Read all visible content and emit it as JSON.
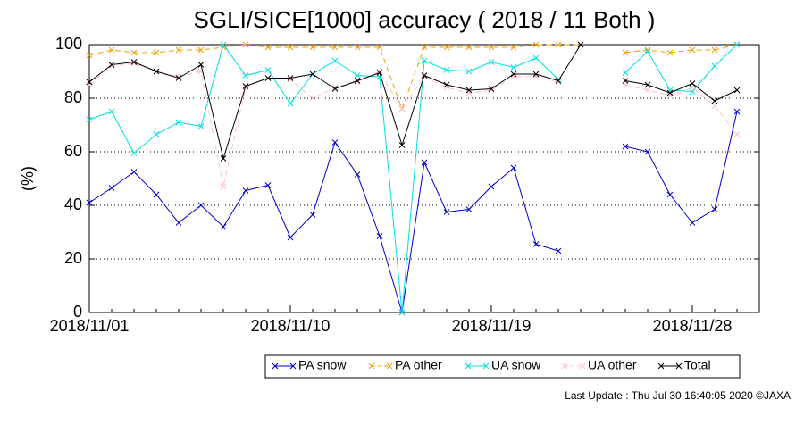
{
  "chart_data": {
    "type": "line",
    "title": "SGLI/SICE[1000] accuracy ( 2018 / 11 Both )",
    "y_label": "(%)",
    "footer": "Last Update : Thu Jul 30 16:40:05 2020 ©JAXA",
    "x": [
      "2018/11/01",
      "2018/11/02",
      "2018/11/03",
      "2018/11/04",
      "2018/11/05",
      "2018/11/06",
      "2018/11/07",
      "2018/11/08",
      "2018/11/09",
      "2018/11/10",
      "2018/11/11",
      "2018/11/12",
      "2018/11/13",
      "2018/11/14",
      "2018/11/15",
      "2018/11/16",
      "2018/11/17",
      "2018/11/18",
      "2018/11/19",
      "2018/11/20",
      "2018/11/21",
      "2018/11/22",
      "2018/11/23",
      "2018/11/24",
      "2018/11/25",
      "2018/11/26",
      "2018/11/27",
      "2018/11/28",
      "2018/11/29",
      "2018/11/30"
    ],
    "xticks": [
      "2018/11/01",
      "2018/11/10",
      "2018/11/19",
      "2018/11/28"
    ],
    "ylim": [
      0,
      100
    ],
    "yticks": [
      0,
      20,
      40,
      60,
      80,
      100
    ],
    "grid": true,
    "series": [
      {
        "name": "PA snow",
        "color": "#0000cc",
        "dashed": false,
        "values": [
          41,
          46.5,
          52.5,
          44,
          33.5,
          40,
          32,
          45.5,
          47.5,
          28,
          36.5,
          63.5,
          51.5,
          28.5,
          0,
          56,
          37.5,
          38.5,
          47,
          54,
          25.5,
          23,
          null,
          null,
          62,
          60,
          44,
          33.5,
          38.5,
          75
        ]
      },
      {
        "name": "PA other",
        "color": "#f0a000",
        "dashed": true,
        "values": [
          96,
          98,
          97,
          97,
          98,
          98,
          99,
          100,
          99,
          99,
          99,
          99,
          99,
          99,
          76,
          99,
          99,
          99,
          99,
          99,
          100,
          100,
          100,
          null,
          97,
          98,
          97,
          98,
          98,
          100
        ]
      },
      {
        "name": "UA snow",
        "color": "#00e0e0",
        "dashed": false,
        "values": [
          72,
          75,
          59.5,
          66.5,
          71,
          69.5,
          100,
          88.5,
          90.5,
          78,
          89,
          94,
          88.5,
          88,
          0,
          94,
          90.5,
          90,
          93.5,
          91.5,
          95,
          87,
          null,
          null,
          89.5,
          97.5,
          83,
          82.5,
          92,
          100
        ]
      },
      {
        "name": "UA other",
        "color": "#ffc0cb",
        "dashed": true,
        "values": [
          85,
          92,
          93,
          90,
          88,
          90,
          47,
          84,
          87.5,
          87,
          80,
          84,
          86,
          90,
          76,
          88,
          84,
          82,
          83,
          88,
          88,
          86,
          null,
          null,
          85,
          83,
          81,
          84,
          77,
          66.5
        ]
      },
      {
        "name": "Total",
        "color": "#000000",
        "dashed": false,
        "values": [
          86,
          92.5,
          93.5,
          90,
          87.5,
          92.5,
          57.5,
          84.5,
          87.5,
          87.5,
          89,
          83.5,
          86.5,
          89.5,
          62.5,
          88.5,
          85,
          83,
          83.5,
          89,
          89,
          86.5,
          100,
          null,
          86.5,
          85,
          82,
          85.5,
          79,
          83
        ]
      }
    ]
  }
}
